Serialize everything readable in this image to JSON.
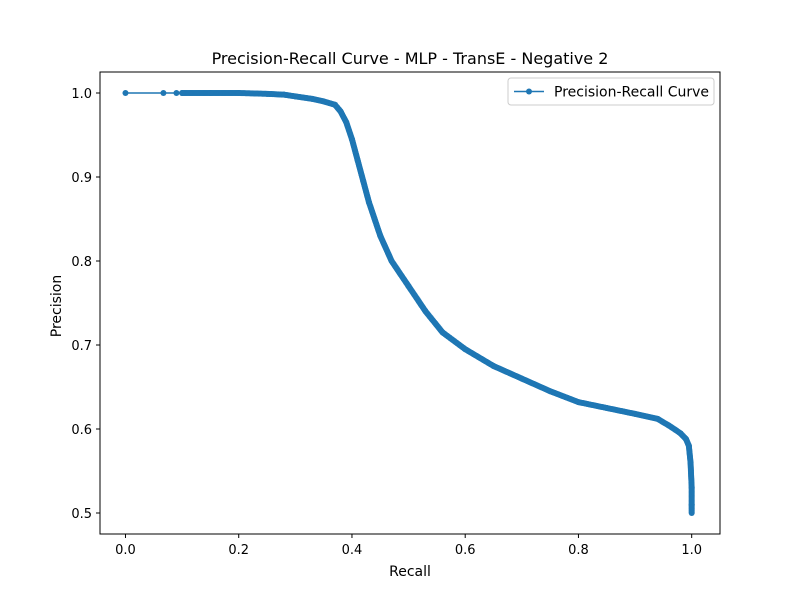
{
  "chart_data": {
    "type": "line",
    "title": "Precision-Recall Curve - MLP - TransE - Negative 2",
    "xlabel": "Recall",
    "ylabel": "Precision",
    "xlim": [
      -0.045,
      1.05
    ],
    "ylim": [
      0.475,
      1.025
    ],
    "xticks": [
      0.0,
      0.2,
      0.4,
      0.6,
      0.8,
      1.0
    ],
    "xtick_labels": [
      "0.0",
      "0.2",
      "0.4",
      "0.6",
      "0.8",
      "1.0"
    ],
    "yticks": [
      0.5,
      0.6,
      0.7,
      0.8,
      0.9,
      1.0
    ],
    "ytick_labels": [
      "0.5",
      "0.6",
      "0.7",
      "0.8",
      "0.9",
      "1.0"
    ],
    "grid": false,
    "legend_position": "upper right",
    "series": [
      {
        "name": "Precision-Recall Curve",
        "color": "#1f77b4",
        "marker": "circle",
        "x": [
          0.0,
          0.067,
          0.09,
          0.1,
          0.15,
          0.2,
          0.25,
          0.28,
          0.3,
          0.33,
          0.35,
          0.37,
          0.38,
          0.39,
          0.4,
          0.41,
          0.42,
          0.43,
          0.44,
          0.45,
          0.47,
          0.5,
          0.53,
          0.56,
          0.6,
          0.65,
          0.7,
          0.75,
          0.8,
          0.85,
          0.9,
          0.94,
          0.96,
          0.98,
          0.99,
          0.995,
          0.998,
          1.0,
          1.0,
          1.0
        ],
        "y": [
          1.0,
          1.0,
          1.0,
          1.0,
          1.0,
          1.0,
          0.999,
          0.998,
          0.996,
          0.993,
          0.99,
          0.986,
          0.978,
          0.965,
          0.945,
          0.92,
          0.895,
          0.87,
          0.85,
          0.83,
          0.8,
          0.77,
          0.74,
          0.715,
          0.695,
          0.675,
          0.66,
          0.645,
          0.632,
          0.625,
          0.618,
          0.612,
          0.604,
          0.595,
          0.588,
          0.58,
          0.56,
          0.53,
          0.51,
          0.5
        ]
      }
    ]
  }
}
